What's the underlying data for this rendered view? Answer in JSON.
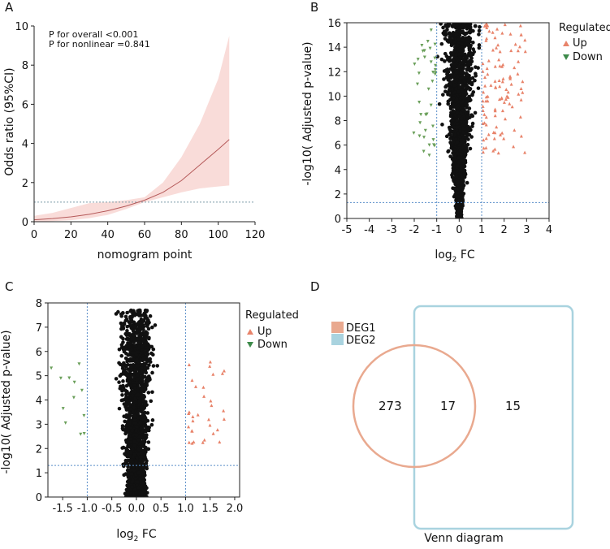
{
  "chart_data": [
    {
      "panel": "A",
      "type": "line",
      "title": "",
      "xlabel": "nomogram point",
      "ylabel": "Odds ratio (95%CI)",
      "xlim": [
        0,
        120
      ],
      "ylim": [
        0,
        10
      ],
      "xticks": [
        0,
        20,
        40,
        60,
        80,
        100,
        120
      ],
      "yticks": [
        0,
        2,
        4,
        6,
        8,
        10
      ],
      "annotations": [
        "P for overall <0.001",
        "P for nonlinear =0.841"
      ],
      "reference_line_y": 1,
      "series": [
        {
          "name": "OR",
          "x": [
            0,
            10,
            20,
            30,
            40,
            50,
            60,
            70,
            80,
            90,
            100,
            106
          ],
          "y": [
            0.1,
            0.16,
            0.25,
            0.38,
            0.56,
            0.8,
            1.1,
            1.5,
            2.1,
            2.9,
            3.7,
            4.2
          ]
        },
        {
          "name": "95% CI lower",
          "x": [
            0,
            10,
            20,
            30,
            40,
            50,
            60,
            70,
            80,
            90,
            100,
            106
          ],
          "y": [
            0.0,
            0.03,
            0.08,
            0.18,
            0.35,
            0.65,
            1.0,
            1.25,
            1.5,
            1.7,
            1.8,
            1.85
          ]
        },
        {
          "name": "95% CI upper",
          "x": [
            0,
            10,
            20,
            30,
            40,
            50,
            60,
            70,
            80,
            90,
            100,
            106
          ],
          "y": [
            0.3,
            0.45,
            0.7,
            0.95,
            1.0,
            1.1,
            1.25,
            2.0,
            3.3,
            5.0,
            7.3,
            9.5
          ]
        }
      ]
    },
    {
      "panel": "B",
      "type": "scatter",
      "xlabel": "log",
      "xlabel_sub": "2",
      "xlabel_suffix": " FC",
      "ylabel": "-log10( Adjusted p-value)",
      "xlim": [
        -5,
        4
      ],
      "ylim": [
        0,
        16
      ],
      "xticks": [
        -5,
        -4,
        -3,
        -2,
        -1,
        0,
        1,
        2,
        3,
        4
      ],
      "yticks": [
        0,
        2,
        4,
        6,
        8,
        10,
        12,
        14,
        16
      ],
      "threshold_x": [
        -1,
        1
      ],
      "threshold_y": 1.3,
      "legend": {
        "title": "Regulated",
        "items": [
          "Up",
          "Down"
        ]
      },
      "colors": {
        "up": "#e8836a",
        "down": "#6a9f5a",
        "ns": "#111111"
      }
    },
    {
      "panel": "C",
      "type": "scatter",
      "xlabel": "log",
      "xlabel_sub": "2",
      "xlabel_suffix": " FC",
      "ylabel": "-log10( Adjusted p-value)",
      "xlim": [
        -1.8,
        2.1
      ],
      "ylim": [
        0,
        8
      ],
      "xticks": [
        -1.5,
        -1.0,
        -0.5,
        0.0,
        0.5,
        1.0,
        1.5,
        2.0
      ],
      "yticks": [
        0,
        1,
        2,
        3,
        4,
        5,
        6,
        7,
        8
      ],
      "threshold_x": [
        -1,
        1
      ],
      "threshold_y": 1.3,
      "legend": {
        "title": "Regulated",
        "items": [
          "Up",
          "Down"
        ]
      },
      "colors": {
        "up": "#e8836a",
        "down": "#6a9f5a",
        "ns": "#111111"
      }
    },
    {
      "panel": "D",
      "type": "table",
      "title": "Venn diagram",
      "sets": [
        "DEG1",
        "DEG2"
      ],
      "counts": {
        "DEG1_only": 273,
        "both": 17,
        "DEG2_only": 15
      },
      "colors": {
        "DEG1": "#e9a98f",
        "DEG2": "#a9d3df"
      }
    }
  ],
  "panel_labels": [
    "A",
    "B",
    "C",
    "D"
  ],
  "tick_format": {
    "A_x": [
      "0",
      "20",
      "40",
      "60",
      "80",
      "100",
      "120"
    ],
    "A_y": [
      "0",
      "2",
      "4",
      "6",
      "8",
      "10"
    ],
    "B_x": [
      "-5",
      "-4",
      "-3",
      "-2",
      "-1",
      "0",
      "1",
      "2",
      "3",
      "4"
    ],
    "B_y": [
      "0",
      "2",
      "4",
      "6",
      "8",
      "10",
      "12",
      "14",
      "16"
    ],
    "C_x": [
      "-1.5",
      "-1.0",
      "-0.5",
      "0.0",
      "0.5",
      "1.0",
      "1.5",
      "2.0"
    ],
    "C_y": [
      "0",
      "1",
      "2",
      "3",
      "4",
      "5",
      "6",
      "7",
      "8"
    ]
  }
}
